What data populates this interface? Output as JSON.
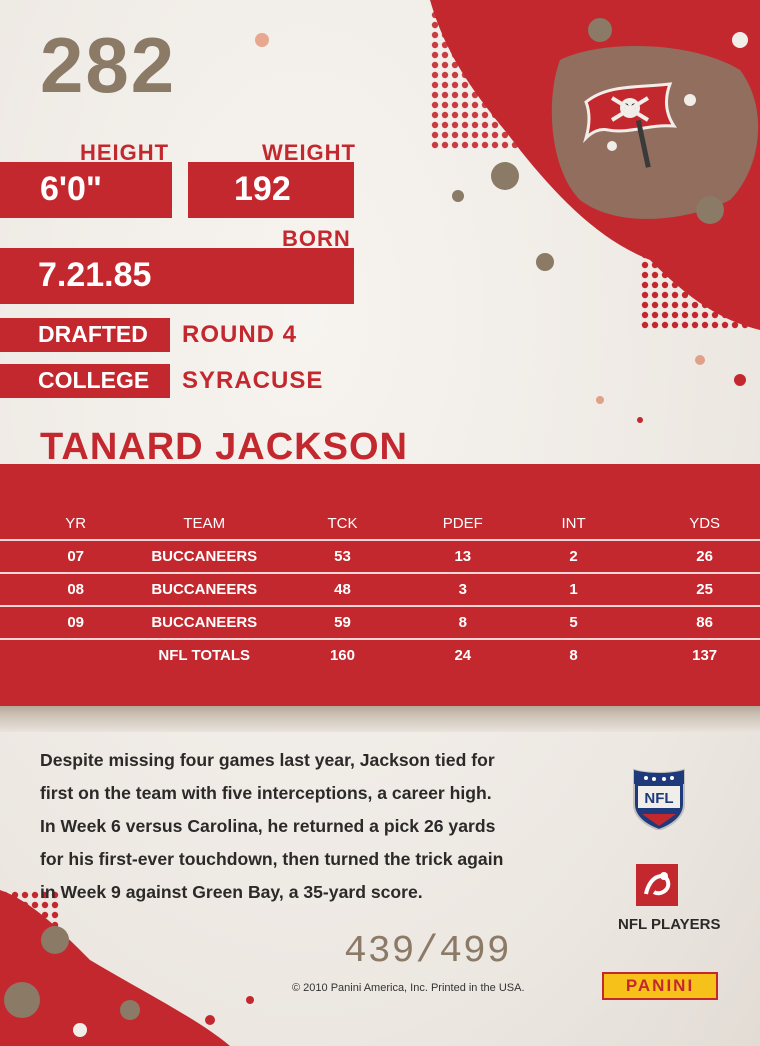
{
  "card": {
    "number": "282",
    "player_name": "TANARD JACKSON",
    "height": {
      "label": "HEIGHT",
      "value": "6'0\""
    },
    "weight": {
      "label": "WEIGHT",
      "value": "192"
    },
    "born": {
      "label": "BORN",
      "value": "7.21.85"
    },
    "drafted": {
      "label": "DRAFTED",
      "value": "ROUND 4"
    },
    "college": {
      "label": "COLLEGE",
      "value": "SYRACUSE"
    }
  },
  "stats": {
    "headers": [
      "YR",
      "TEAM",
      "TCK",
      "PDEF",
      "INT",
      "YDS"
    ],
    "rows": [
      [
        "07",
        "BUCCANEERS",
        "53",
        "13",
        "2",
        "26"
      ],
      [
        "08",
        "BUCCANEERS",
        "48",
        "3",
        "1",
        "25"
      ],
      [
        "09",
        "BUCCANEERS",
        "59",
        "8",
        "5",
        "86"
      ]
    ],
    "totals": [
      "",
      "NFL TOTALS",
      "160",
      "24",
      "8",
      "137"
    ]
  },
  "bio": [
    "Despite missing four games last year, Jackson tied for",
    "first on the team with five interceptions, a career high.",
    "In Week 6 versus Carolina, he returned a pick 26 yards",
    "for his first-ever touchdown, then turned the trick again",
    "in Week 9 against Green Bay, a 35-yard score."
  ],
  "serial": "439/499",
  "copyright": "© 2010 Panini America, Inc. Printed in the USA.",
  "logos": {
    "team": "buccaneers-flag-icon",
    "nfl": "nfl-shield-icon",
    "nfl_players_label": "NFL PLAYERS",
    "nfl_players": "nfl-players-icon",
    "brand": "PANINI"
  },
  "colors": {
    "red": "#c4282f",
    "gold_brown": "#8a7a66",
    "panini_yellow": "#f6c21a"
  }
}
